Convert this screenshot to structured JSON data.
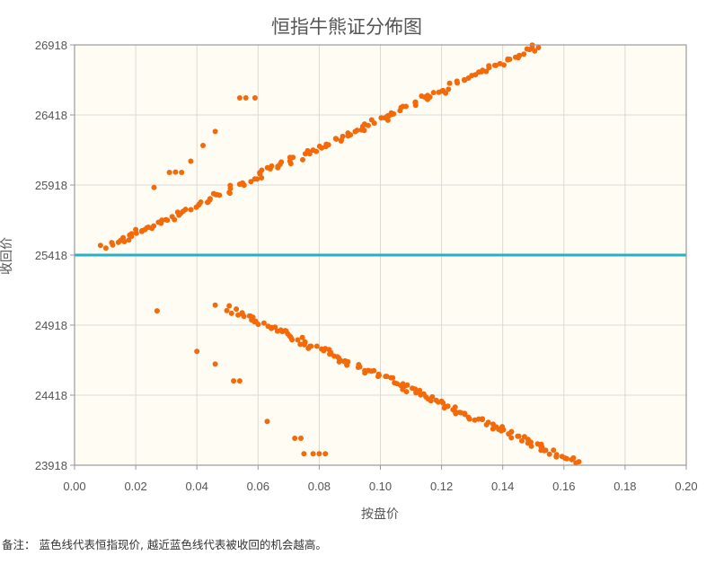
{
  "chart_data": {
    "type": "scatter",
    "title": "恒指牛熊证分佈图",
    "xlabel": "按盘价",
    "ylabel": "收回价",
    "xlim": [
      0,
      0.2
    ],
    "ylim": [
      23918,
      26918
    ],
    "x_ticks": [
      "0.00",
      "0.02",
      "0.04",
      "0.06",
      "0.08",
      "0.10",
      "0.12",
      "0.14",
      "0.16",
      "0.18",
      "0.20"
    ],
    "y_ticks": [
      "23918",
      "24418",
      "24918",
      "25418",
      "25918",
      "26418",
      "26918"
    ],
    "grid": true,
    "reference_line": {
      "y": 25418,
      "color": "#26b0c2"
    },
    "point_color": "#f26a0a",
    "plot_background": "#fffdf3",
    "bull": {
      "start": [
        0.01,
        25470
      ],
      "end": [
        0.152,
        26918
      ],
      "count": 160,
      "outliers": [
        [
          0.026,
          25900
        ],
        [
          0.031,
          26008
        ],
        [
          0.033,
          26010
        ],
        [
          0.035,
          26008
        ],
        [
          0.038,
          26088
        ],
        [
          0.042,
          26200
        ],
        [
          0.046,
          26300
        ],
        [
          0.054,
          26540
        ],
        [
          0.056,
          26540
        ],
        [
          0.059,
          26540
        ],
        [
          0.018,
          25560
        ],
        [
          0.02,
          25600
        ]
      ]
    },
    "bear": {
      "start": [
        0.05,
        25040
      ],
      "end": [
        0.165,
        23922
      ],
      "count": 150,
      "outliers": [
        [
          0.027,
          25020
        ],
        [
          0.046,
          25060
        ],
        [
          0.04,
          24730
        ],
        [
          0.046,
          24640
        ],
        [
          0.052,
          24520
        ],
        [
          0.054,
          24520
        ],
        [
          0.063,
          24230
        ],
        [
          0.072,
          24110
        ],
        [
          0.074,
          24110
        ],
        [
          0.075,
          24000
        ],
        [
          0.078,
          24000
        ],
        [
          0.08,
          24000
        ],
        [
          0.082,
          24000
        ]
      ]
    },
    "note": "备注： 蓝色线代表恒指现价, 越近蓝色线代表被收回的机会越高。"
  }
}
